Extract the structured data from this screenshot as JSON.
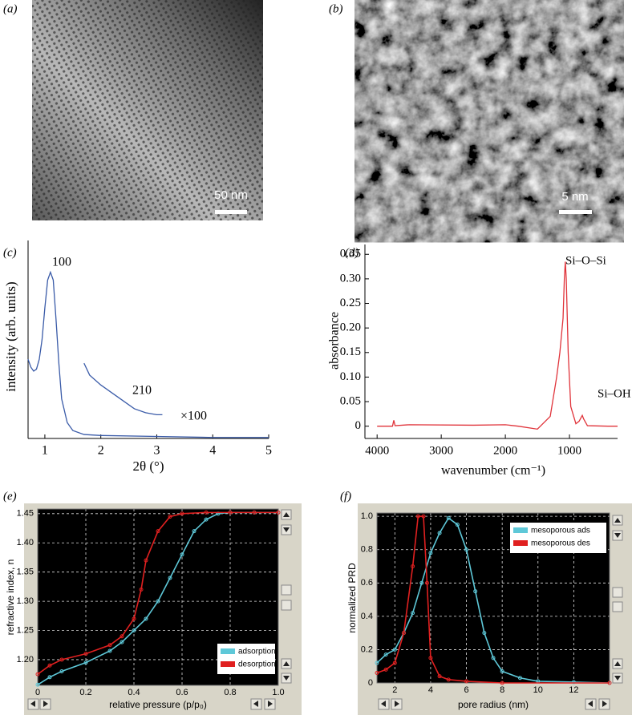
{
  "panels": [
    {
      "label": "(a)",
      "scale_bar": "50 nm"
    },
    {
      "label": "(b)",
      "scale_bar": "5 nm"
    }
  ],
  "chart_data": [
    {
      "type": "line",
      "label": "(c)",
      "ylabel": "intensity (arb. units)",
      "xlabel": "2θ (°)",
      "annotations": [
        "100",
        "210",
        "×100"
      ],
      "xlim": [
        0.7,
        5
      ],
      "xticks": [
        1,
        2,
        3,
        4,
        5
      ],
      "ylim": [
        0,
        1
      ],
      "series": [
        {
          "color": "#3a5ba8",
          "x": [
            0.7,
            0.75,
            0.8,
            0.85,
            0.9,
            0.95,
            1.0,
            1.05,
            1.1,
            1.15,
            1.2,
            1.25,
            1.3,
            1.4,
            1.5,
            1.7,
            2,
            3,
            4,
            5
          ],
          "values": [
            0.4,
            0.36,
            0.34,
            0.35,
            0.4,
            0.5,
            0.66,
            0.8,
            0.84,
            0.8,
            0.6,
            0.38,
            0.2,
            0.08,
            0.04,
            0.02,
            0.015,
            0.01,
            0.005,
            0.005
          ]
        },
        {
          "color": "#3a5ba8",
          "x": [
            1.7,
            1.8,
            2.0,
            2.2,
            2.4,
            2.6,
            2.8,
            3.0,
            3.1
          ],
          "values": [
            0.38,
            0.32,
            0.27,
            0.23,
            0.19,
            0.15,
            0.13,
            0.12,
            0.12
          ]
        }
      ]
    },
    {
      "type": "line",
      "label": "(d)",
      "ylabel": "absorbance",
      "xlabel": "wavenumber (cm⁻¹)",
      "annotations": [
        "Si–O–Si",
        "Si–OH"
      ],
      "xlim": [
        4190,
        250
      ],
      "xticks": [
        4000,
        3000,
        2000,
        1000
      ],
      "ylim": [
        -0.025,
        0.37
      ],
      "yticks": [
        0,
        0.05,
        {
          "value": 0.1,
          "label": "0.10"
        },
        0.15,
        {
          "value": 0.2,
          "label": "0.20"
        },
        0.25,
        {
          "value": 0.3,
          "label": "0.30"
        },
        0.35
      ],
      "series": [
        {
          "color": "#e0333a",
          "x": [
            4000,
            3760,
            3740,
            3720,
            3500,
            2500,
            2000,
            1800,
            1500,
            1300,
            1200,
            1150,
            1100,
            1080,
            1065,
            1050,
            1020,
            980,
            900,
            850,
            800,
            780,
            720,
            400,
            250
          ],
          "values": [
            0,
            0,
            0.012,
            0.001,
            0.003,
            0.002,
            0.003,
            0,
            -0.006,
            0.02,
            0.1,
            0.15,
            0.22,
            0.3,
            0.335,
            0.3,
            0.15,
            0.04,
            0.005,
            0.01,
            0.022,
            0.015,
            0.001,
            0,
            0
          ]
        }
      ]
    },
    {
      "type": "line",
      "label": "(e)",
      "ylabel": "refractive index, n",
      "xlabel": "relative pressure (p/p₀)",
      "xlim": [
        0,
        1
      ],
      "xticks": [
        0,
        0.2,
        0.4,
        0.6,
        0.8,
        {
          "value": 1,
          "label": "1.0"
        }
      ],
      "ylim": [
        1.156,
        1.458
      ],
      "yticks": [
        {
          "value": 1.2,
          "label": "1.20"
        },
        1.25,
        {
          "value": 1.3,
          "label": "1.30"
        },
        1.35,
        {
          "value": 1.4,
          "label": "1.40"
        },
        1.45
      ],
      "grid": true,
      "plot_background": "#000000",
      "markers": true,
      "legend": "lower right",
      "series": [
        {
          "name": "adsorption",
          "color": "#5ec8d8",
          "x": [
            0,
            0.05,
            0.1,
            0.2,
            0.3,
            0.35,
            0.4,
            0.45,
            0.5,
            0.55,
            0.6,
            0.65,
            0.7,
            0.75,
            0.8,
            0.9,
            1.0
          ],
          "values": [
            1.157,
            1.17,
            1.18,
            1.195,
            1.215,
            1.23,
            1.25,
            1.27,
            1.3,
            1.34,
            1.38,
            1.42,
            1.44,
            1.45,
            1.452,
            1.452,
            1.452
          ]
        },
        {
          "name": "desorption",
          "color": "#e02020",
          "x": [
            0,
            0.05,
            0.1,
            0.2,
            0.3,
            0.35,
            0.4,
            0.43,
            0.45,
            0.5,
            0.55,
            0.6,
            0.7,
            0.8,
            0.9,
            1.0
          ],
          "values": [
            1.175,
            1.19,
            1.2,
            1.21,
            1.225,
            1.24,
            1.27,
            1.32,
            1.37,
            1.42,
            1.445,
            1.45,
            1.452,
            1.452,
            1.452,
            1.452
          ]
        }
      ]
    },
    {
      "type": "line",
      "label": "(f)",
      "ylabel": "normalized PRD",
      "xlabel": "pore radius (nm)",
      "xlim": [
        1,
        14
      ],
      "xticks": [
        2,
        4,
        6,
        8,
        10,
        12
      ],
      "ylim": [
        0,
        1.02
      ],
      "yticks": [
        0,
        0.2,
        0.4,
        0.6,
        0.8,
        {
          "value": 1,
          "label": "1.0"
        }
      ],
      "grid": true,
      "plot_background": "#000000",
      "markers": true,
      "legend": "upper right",
      "series": [
        {
          "name": "mesoporous ads",
          "color": "#5ec8d8",
          "x": [
            1,
            1.5,
            2,
            2.5,
            3,
            3.5,
            4,
            4.5,
            5,
            5.5,
            6,
            6.5,
            7,
            7.5,
            8,
            9,
            10,
            12,
            14
          ],
          "values": [
            0.12,
            0.17,
            0.2,
            0.3,
            0.42,
            0.6,
            0.78,
            0.9,
            0.99,
            0.95,
            0.8,
            0.55,
            0.3,
            0.15,
            0.07,
            0.03,
            0.01,
            0.005,
            0
          ]
        },
        {
          "name": "mesoporous des",
          "color": "#e02020",
          "x": [
            1,
            1.5,
            2,
            2.5,
            3,
            3.3,
            3.6,
            3.8,
            4,
            4.5,
            5,
            6,
            8,
            14
          ],
          "values": [
            0.06,
            0.08,
            0.12,
            0.3,
            0.7,
            1.0,
            1.0,
            0.6,
            0.15,
            0.04,
            0.02,
            0.01,
            0,
            0
          ]
        }
      ]
    }
  ]
}
